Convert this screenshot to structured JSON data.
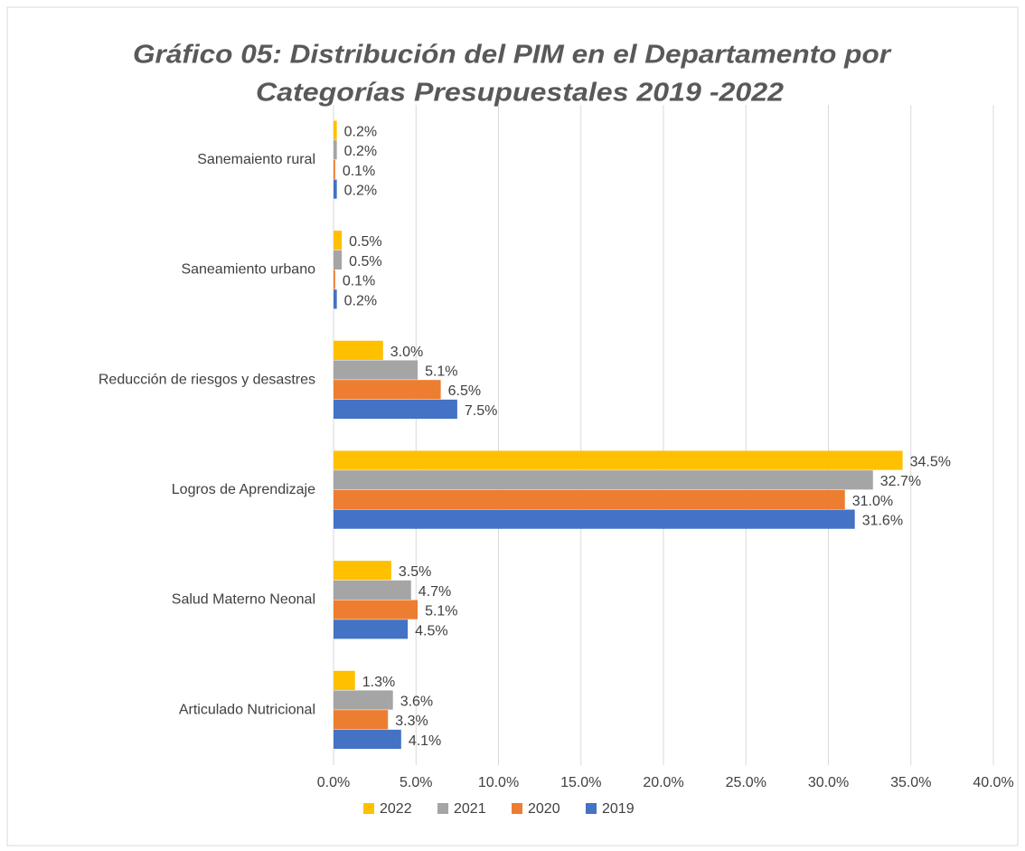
{
  "chart_data": {
    "type": "hbar",
    "title": [
      "Gráfico 05: Distribución del PIM en el Departamento por",
      "Categorías Presupuestales 2019 -2022"
    ],
    "categories": [
      "Sanemaiento rural",
      "Saneamiento urbano",
      "Reducción de riesgos y desastres",
      "Logros de Aprendizaje",
      "Salud Materno Neonal",
      "Articulado Nutricional"
    ],
    "series": [
      {
        "name": "2022",
        "color": "#FFC000",
        "values": [
          0.2,
          0.5,
          3,
          34.5,
          3.5,
          1.3
        ],
        "value_labels": [
          "0.2%",
          "0.5%",
          "3.0%",
          "34.5%",
          "3.5%",
          "1.3%"
        ]
      },
      {
        "name": "2021",
        "color": "#A5A5A5",
        "values": [
          0.2,
          0.5,
          5.1,
          32.7,
          4.7,
          3.6
        ],
        "value_labels": [
          "0.2%",
          "0.5%",
          "5.1%",
          "32.7%",
          "4.7%",
          "3.6%"
        ]
      },
      {
        "name": "2020",
        "color": "#ED7D31",
        "values": [
          0.1,
          0.1,
          6.5,
          31,
          5.1,
          3.3
        ],
        "value_labels": [
          "0.1%",
          "0.1%",
          "6.5%",
          "31.0%",
          "5.1%",
          "3.3%"
        ]
      },
      {
        "name": "2019",
        "color": "#4472C4",
        "values": [
          0.2,
          0.2,
          7.5,
          31.6,
          4.5,
          4.1
        ],
        "value_labels": [
          "0.2%",
          "0.2%",
          "7.5%",
          "31.6%",
          "4.5%",
          "4.1%"
        ]
      }
    ],
    "xlim": [
      0,
      40
    ],
    "xticks": [
      {
        "value": 0,
        "label": "0.0%"
      },
      {
        "value": 5,
        "label": "5.0%"
      },
      {
        "value": 10,
        "label": "10.0%"
      },
      {
        "value": 15,
        "label": "15.0%"
      },
      {
        "value": 20,
        "label": "20.0%"
      },
      {
        "value": 25,
        "label": "25.0%"
      },
      {
        "value": 30,
        "label": "30.0%"
      },
      {
        "value": 35,
        "label": "35.0%"
      },
      {
        "value": 40,
        "label": "40.0%"
      }
    ],
    "grid": true,
    "legend": "bottom"
  }
}
